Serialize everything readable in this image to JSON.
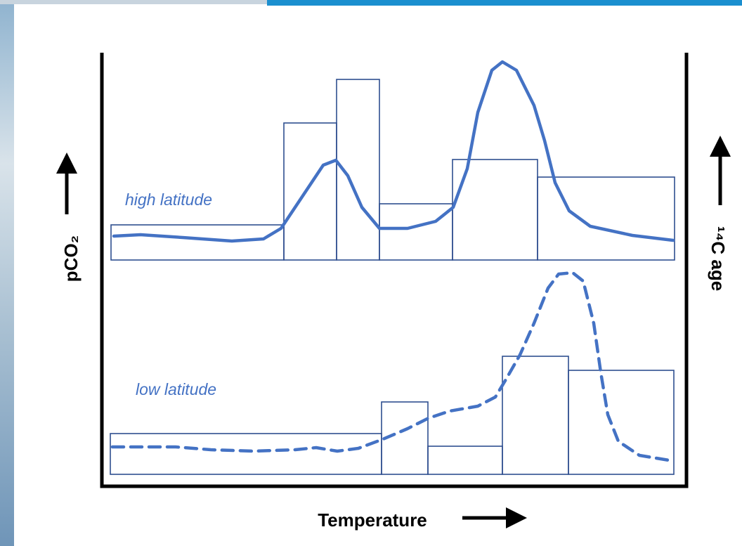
{
  "labels": {
    "high": "high latitude",
    "low": "low latitude"
  },
  "axes": {
    "left": "pCO₂",
    "right": "¹⁴C age",
    "bottom": "Temperature"
  }
}
